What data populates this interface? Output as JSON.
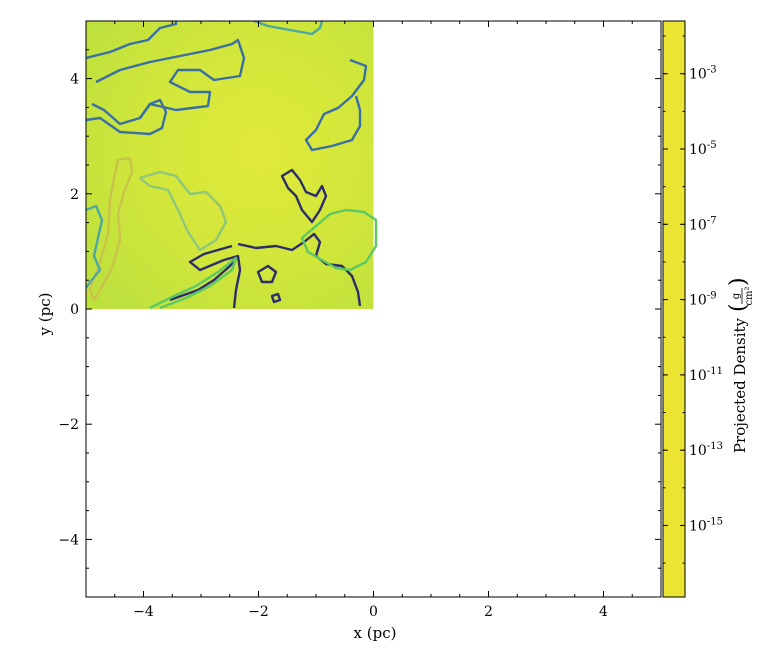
{
  "chart_data": {
    "type": "heatmap",
    "title": "",
    "xlabel": "x (pc)",
    "ylabel": "y (pc)",
    "xlim": [
      -5,
      5
    ],
    "ylim": [
      -5,
      5
    ],
    "x_ticks": [
      -4,
      -2,
      0,
      2,
      4
    ],
    "y_ticks": [
      -4,
      -2,
      0,
      2,
      4
    ],
    "x_tick_labels": [
      "−4",
      "−2",
      "0",
      "2",
      "4"
    ],
    "y_tick_labels": [
      "−4",
      "−2",
      "0",
      "2",
      "4"
    ],
    "data_extent": {
      "x": [
        -5,
        0
      ],
      "y": [
        0,
        5
      ]
    },
    "colorbar": {
      "label": "Projected Density",
      "unit_numerator": "g",
      "unit_denominator": "cm²",
      "scale": "log",
      "range_exponent": [
        -16.9,
        -1.6
      ],
      "tick_exponents": [
        -3,
        -5,
        -7,
        -9,
        -11,
        -13,
        -15
      ],
      "colormap_stops": [
        "#ebe432",
        "#d1e234",
        "#a8db34",
        "#5ec962",
        "#2ab07f",
        "#1f9a8a",
        "#26828e",
        "#31688e",
        "#3f6fd0",
        "#5a5ee8",
        "#7e3fe0",
        "#6b2fb0",
        "#7a2a70",
        "#7e1a2c",
        "#7a0f10"
      ]
    },
    "field_mean_color": "#d2e83a",
    "contour_colors": [
      "#3a6fa6",
      "#4ea7a0",
      "#2d2d6b",
      "#8fc77a",
      "#c9c34a"
    ]
  }
}
